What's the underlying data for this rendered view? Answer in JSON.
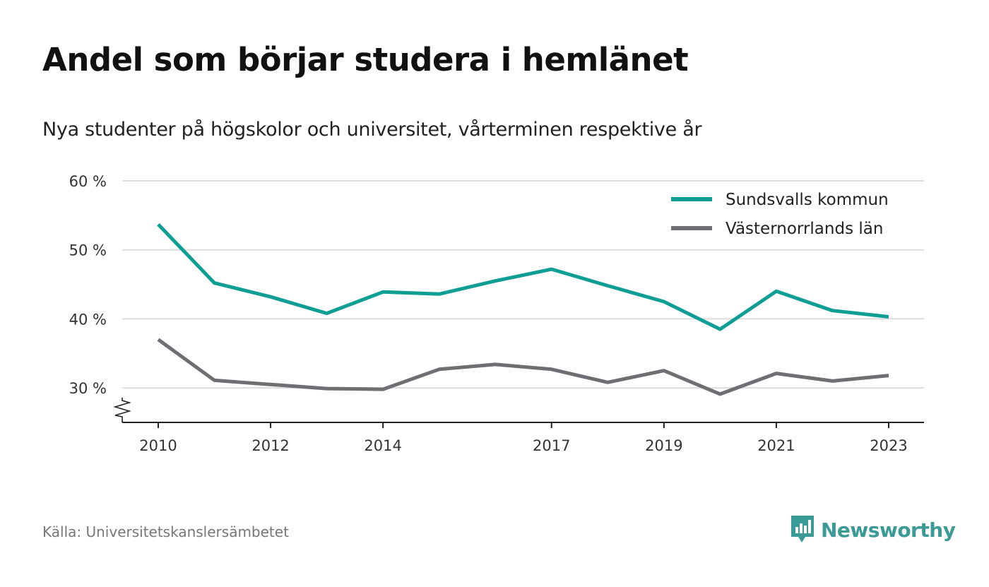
{
  "title": "Andel som börjar studera i hemlänet",
  "subtitle": "Nya studenter på högskolor och universitet, vårterminen respektive år",
  "source": "Källa: Universitetskanslersämbetet",
  "logo": {
    "text": "Newsworthy",
    "icon": "newsworthy-bar-chart-icon",
    "color": "#3a9a96"
  },
  "chart_data": {
    "type": "line",
    "x": [
      2010,
      2011,
      2012,
      2013,
      2014,
      2015,
      2016,
      2017,
      2018,
      2019,
      2020,
      2021,
      2022,
      2023
    ],
    "x_tick_labels": [
      "2010",
      "2012",
      "2014",
      "2017",
      "2019",
      "2021",
      "2023"
    ],
    "y_ticks": [
      30,
      40,
      50,
      60
    ],
    "y_tick_labels": [
      "30 %",
      "40 %",
      "50 %",
      "60 %"
    ],
    "ylim": [
      25,
      60
    ],
    "y_axis_break": true,
    "grid": true,
    "legend_position": "top-right",
    "series": [
      {
        "name": "Sundsvalls kommun",
        "color": "#0f9e94",
        "values": [
          53.7,
          45.2,
          43.2,
          40.8,
          43.9,
          43.6,
          45.5,
          47.2,
          44.8,
          42.5,
          38.5,
          44.0,
          41.2,
          40.3
        ]
      },
      {
        "name": "Västernorrlands län",
        "color": "#6e6e73",
        "values": [
          37.0,
          31.1,
          30.5,
          29.9,
          29.8,
          32.7,
          33.4,
          32.7,
          30.8,
          32.5,
          29.1,
          32.1,
          31.0,
          31.8
        ]
      }
    ]
  }
}
